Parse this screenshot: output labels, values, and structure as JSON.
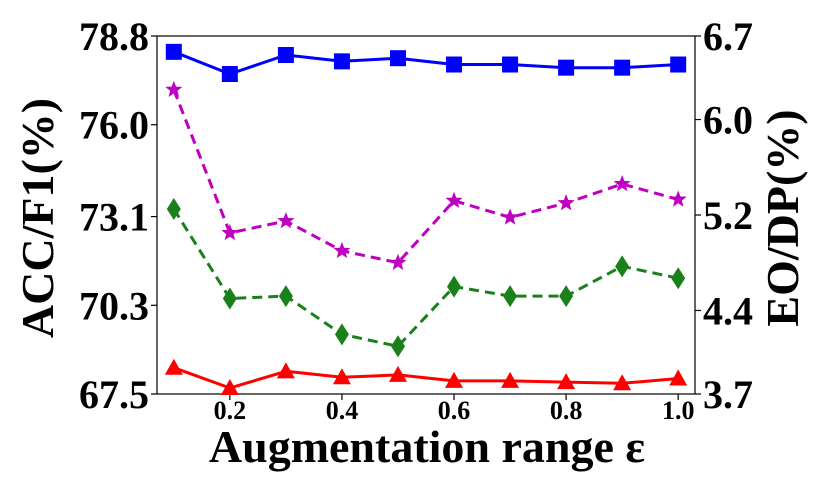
{
  "chart_data": {
    "type": "line",
    "xlabel": "Augmentation range ε",
    "ylabel_left": "ACC/F1(%)",
    "ylabel_right": "EO/DP(%)",
    "x": [
      0.1,
      0.2,
      0.3,
      0.4,
      0.5,
      0.6,
      0.7,
      0.8,
      0.9,
      1.0
    ],
    "xlim": [
      0.07,
      1.03
    ],
    "x_ticks": [
      0.2,
      0.4,
      0.6,
      0.8,
      1.0
    ],
    "x_tick_labels": [
      "0.2",
      "0.4",
      "0.6",
      "0.8",
      "1.0"
    ],
    "left_axis": {
      "ylim": [
        67.5,
        78.8
      ],
      "ticks": [
        67.5,
        70.3,
        73.1,
        76.0,
        78.8
      ],
      "tick_labels": [
        "67.5",
        "70.3",
        "73.1",
        "76.0",
        "78.8"
      ]
    },
    "right_axis": {
      "ylim": [
        3.7,
        6.7
      ],
      "ticks": [
        3.7,
        4.4,
        5.2,
        6.0,
        6.7
      ],
      "tick_labels": [
        "3.7",
        "4.4",
        "5.2",
        "6.0",
        "6.7"
      ]
    },
    "grid": false,
    "legend": "none",
    "series": [
      {
        "axis": "left",
        "color": "#0000ff",
        "line_style": "solid",
        "marker": "square",
        "values": [
          78.3,
          77.6,
          78.2,
          78.0,
          78.1,
          77.9,
          77.9,
          77.8,
          77.8,
          77.9
        ]
      },
      {
        "axis": "right",
        "color": "#c000c0",
        "line_style": "dashed",
        "marker": "star",
        "values": [
          6.25,
          5.05,
          5.15,
          4.9,
          4.8,
          5.32,
          5.18,
          5.3,
          5.46,
          5.33
        ]
      },
      {
        "axis": "right",
        "color": "#1a801a",
        "line_style": "dashed",
        "marker": "diamond",
        "values": [
          5.25,
          4.5,
          4.52,
          4.2,
          4.1,
          4.6,
          4.52,
          4.52,
          4.77,
          4.67
        ]
      },
      {
        "axis": "right",
        "color": "#ff0000",
        "line_style": "solid",
        "marker": "triangle",
        "values": [
          3.92,
          3.75,
          3.89,
          3.84,
          3.86,
          3.81,
          3.81,
          3.8,
          3.79,
          3.83
        ]
      }
    ]
  }
}
